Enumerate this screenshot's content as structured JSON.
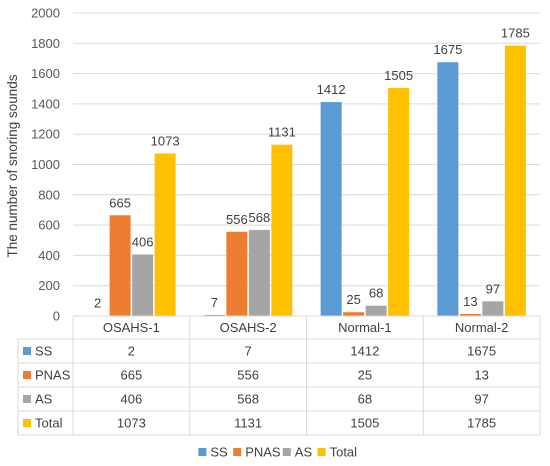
{
  "chart_data": {
    "type": "bar",
    "title": "",
    "xlabel": "",
    "ylabel": "The number of snoring sounds",
    "ylim": [
      0,
      2000
    ],
    "yticks": [
      0,
      200,
      400,
      600,
      800,
      1000,
      1200,
      1400,
      1600,
      1800,
      2000
    ],
    "categories": [
      "OSAHS-1",
      "OSAHS-2",
      "Normal-1",
      "Normal-2"
    ],
    "series": [
      {
        "name": "SS",
        "color": "#5b9bd5",
        "values": [
          2,
          7,
          1412,
          1675
        ]
      },
      {
        "name": "PNAS",
        "color": "#ed7d31",
        "values": [
          665,
          556,
          25,
          13
        ]
      },
      {
        "name": "AS",
        "color": "#a5a5a5",
        "values": [
          406,
          568,
          68,
          97
        ]
      },
      {
        "name": "Total",
        "color": "#ffc000",
        "values": [
          1073,
          1131,
          1505,
          1785
        ]
      }
    ],
    "grid": true,
    "data_table": true,
    "legend_position": "bottom"
  }
}
